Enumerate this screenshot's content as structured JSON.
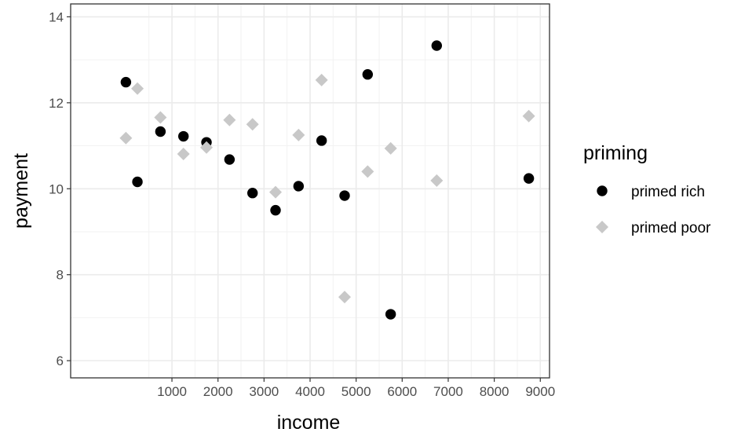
{
  "chart_data": {
    "type": "scatter",
    "xlabel": "income",
    "ylabel": "payment",
    "xlim": [
      -1200,
      9200
    ],
    "ylim": [
      5.6,
      14.3
    ],
    "x_ticks": [
      1000,
      2000,
      3000,
      4000,
      5000,
      6000,
      7000,
      8000,
      9000
    ],
    "x_tick_labels": [
      "1000",
      "2000",
      "3000",
      "4000",
      "5000",
      "6000",
      "7000",
      "8000",
      "9000"
    ],
    "y_ticks": [
      6,
      8,
      10,
      12,
      14
    ],
    "y_tick_labels": [
      "6",
      "8",
      "10",
      "12",
      "14"
    ],
    "grid": true,
    "legend": {
      "title": "priming",
      "placement": "right"
    },
    "series": [
      {
        "name": "primed rich",
        "marker": "circle",
        "color": "#000000",
        "points": [
          {
            "x": 0,
            "y": 12.48
          },
          {
            "x": 250,
            "y": 10.16
          },
          {
            "x": 750,
            "y": 11.33
          },
          {
            "x": 1250,
            "y": 11.22
          },
          {
            "x": 1750,
            "y": 11.08
          },
          {
            "x": 2250,
            "y": 10.68
          },
          {
            "x": 2750,
            "y": 9.9
          },
          {
            "x": 3250,
            "y": 9.5
          },
          {
            "x": 3750,
            "y": 10.06
          },
          {
            "x": 4250,
            "y": 11.12
          },
          {
            "x": 4750,
            "y": 9.84
          },
          {
            "x": 5250,
            "y": 12.66
          },
          {
            "x": 5750,
            "y": 7.08
          },
          {
            "x": 6750,
            "y": 13.33
          },
          {
            "x": 8750,
            "y": 10.24
          }
        ]
      },
      {
        "name": "primed poor",
        "marker": "diamond",
        "color": "#c8c8c8",
        "points": [
          {
            "x": 0,
            "y": 11.18
          },
          {
            "x": 250,
            "y": 12.33
          },
          {
            "x": 750,
            "y": 11.66
          },
          {
            "x": 1250,
            "y": 10.81
          },
          {
            "x": 1750,
            "y": 10.96
          },
          {
            "x": 2250,
            "y": 11.6
          },
          {
            "x": 2750,
            "y": 11.5
          },
          {
            "x": 3250,
            "y": 9.92
          },
          {
            "x": 3750,
            "y": 11.25
          },
          {
            "x": 4250,
            "y": 12.53
          },
          {
            "x": 4750,
            "y": 7.48
          },
          {
            "x": 5250,
            "y": 10.4
          },
          {
            "x": 5750,
            "y": 10.94
          },
          {
            "x": 6750,
            "y": 10.19
          },
          {
            "x": 8750,
            "y": 11.69
          }
        ]
      }
    ]
  }
}
